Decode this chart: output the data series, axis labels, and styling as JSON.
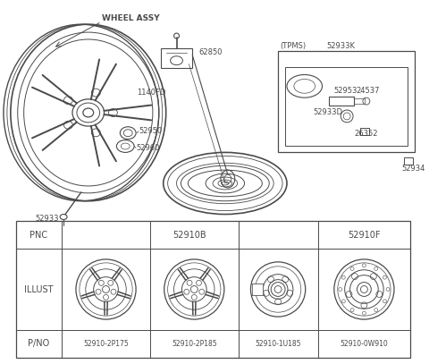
{
  "bg_color": "#ffffff",
  "line_color": "#4a4a4a",
  "labels": {
    "wheel_assy": "WHEEL ASSY",
    "62850": "62850",
    "1140FD": "1140FD",
    "52950": "52950",
    "52960": "52960",
    "52933": "52933",
    "52934": "52934",
    "52953": "52953",
    "24537": "24537",
    "52933D": "52933D",
    "52933K": "52933K",
    "26352": "26352",
    "tpms": "(TPMS)"
  },
  "table": {
    "pnc_label": "PNC",
    "pnc_b": "52910B",
    "pnc_f": "52910F",
    "illust": "ILLUST",
    "pno_label": "P/NO",
    "pno1": "52910-2P175",
    "pno2": "52910-2P185",
    "pno3": "52910-1U185",
    "pno4": "52910-0W910"
  }
}
